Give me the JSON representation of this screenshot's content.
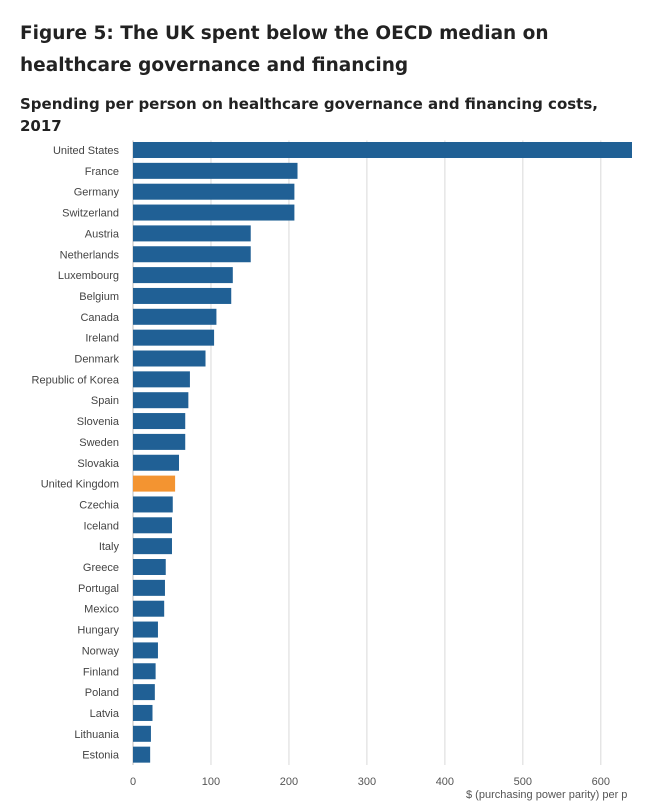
{
  "title": "Figure 5: The UK spent below the OECD median on healthcare governance and financing",
  "subtitle": "Spending per person on healthcare governance and financing costs, 2017",
  "chart_data": {
    "type": "bar",
    "orientation": "horizontal",
    "categories": [
      "United States",
      "France",
      "Germany",
      "Switzerland",
      "Austria",
      "Netherlands",
      "Luxembourg",
      "Belgium",
      "Canada",
      "Ireland",
      "Denmark",
      "Republic of Korea",
      "Spain",
      "Slovenia",
      "Sweden",
      "Slovakia",
      "United Kingdom",
      "Czechia",
      "Iceland",
      "Italy",
      "Greece",
      "Portugal",
      "Mexico",
      "Hungary",
      "Norway",
      "Finland",
      "Poland",
      "Latvia",
      "Lithuania",
      "Estonia"
    ],
    "values": [
      640,
      211,
      207,
      207,
      151,
      151,
      128,
      126,
      107,
      104,
      93,
      73,
      71,
      67,
      67,
      59,
      54,
      51,
      50,
      50,
      42,
      41,
      40,
      32,
      32,
      29,
      28,
      25,
      23,
      22
    ],
    "highlight": "United Kingdom",
    "colors": {
      "bar": "#206095",
      "highlight": "#f39431",
      "grid": "#d9d9d9"
    },
    "xlim": [
      0,
      640
    ],
    "xticks": [
      0,
      100,
      200,
      300,
      400,
      500,
      600
    ],
    "xlabel": "$ (purchasing power parity) per p",
    "grid": true
  }
}
